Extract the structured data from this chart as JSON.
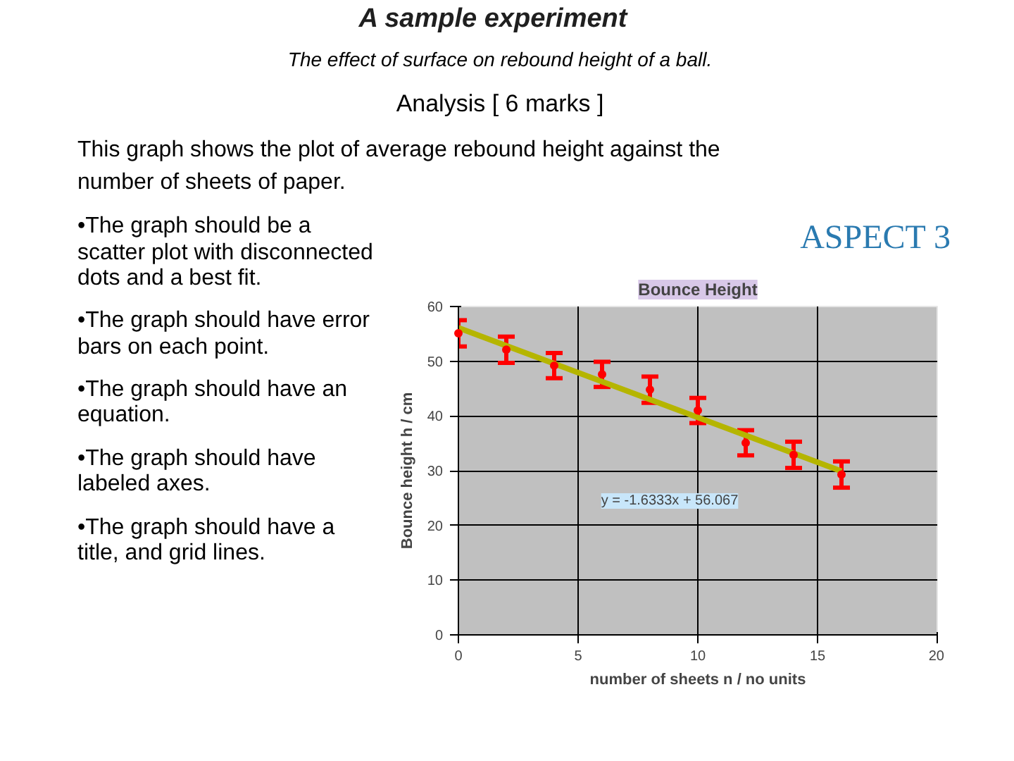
{
  "chart_data": {
    "type": "scatter",
    "title": "A sample experiment",
    "subtitle": "The effect of surface on rebound height of a ball.",
    "annotations": [
      "Analysis [ 6 marks ]",
      "This graph shows the plot of average rebound height against the number of sheets of paper.",
      "•The graph should be a scatter plot with disconnected dots and a best fit.",
      "•The graph should have error bars on each point.",
      "•The graph should have an equation.",
      "•The graph should have labeled axes.",
      "•The graph should have a title, and grid lines.",
      "ASPECT 3",
      "Bounce Height",
      "y = -1.6333x + 56.067"
    ],
    "xlabel": "number of sheets n / no units",
    "ylabel": "Bounce height h / cm",
    "x": [
      0,
      2,
      4,
      6,
      8,
      10,
      12,
      14,
      16
    ],
    "series": [
      {
        "marker": "circle",
        "color": "#ff0000",
        "values": [
          55.1,
          52.1,
          49.2,
          47.6,
          44.8,
          41.0,
          35.1,
          32.9,
          29.3
        ],
        "errors": [
          2.4,
          2.4,
          2.3,
          2.3,
          2.4,
          2.3,
          2.3,
          2.4,
          2.4
        ]
      },
      {
        "type": "line",
        "x": [
          0,
          16
        ],
        "color": "#b5b500",
        "values": [
          56.1,
          29.9
        ]
      }
    ],
    "xlim": [
      0,
      20
    ],
    "ylim": [
      0,
      60
    ],
    "xticks": [
      0,
      5,
      10,
      15,
      20
    ],
    "yticks": [
      0,
      10,
      20,
      30,
      40,
      50,
      60
    ],
    "grid": true
  }
}
